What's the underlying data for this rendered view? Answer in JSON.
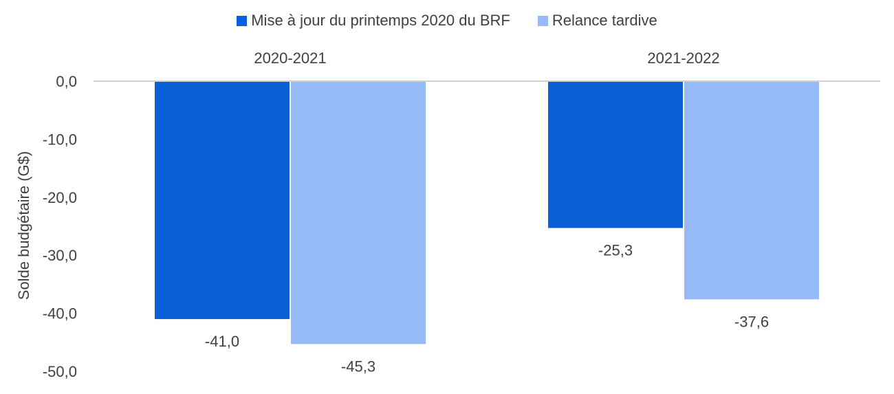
{
  "chart_data": {
    "type": "bar",
    "title": "",
    "xlabel": "",
    "ylabel": "Solde budgétaire (G$)",
    "categories": [
      "2020-2021",
      "2021-2022"
    ],
    "category_axis_position": "top",
    "series": [
      {
        "name": "Mise à jour du printemps 2020 du BRF",
        "color": "#0A60D6",
        "values": [
          -41.0,
          -25.3
        ],
        "labels": [
          "-41,0",
          "-25,3"
        ]
      },
      {
        "name": "Relance tardive",
        "color": "#95BAF5",
        "values": [
          -45.3,
          -37.6
        ],
        "labels": [
          "-45,3",
          "-37,6"
        ]
      }
    ],
    "ylim": [
      -50,
      0
    ],
    "yticks": [
      0,
      -10,
      -20,
      -30,
      -40,
      -50
    ],
    "ytick_labels": [
      "0,0",
      "-10,0",
      "-20,0",
      "-30,0",
      "-40,0",
      "-50,0"
    ],
    "legend_position": "top",
    "grid": false
  }
}
